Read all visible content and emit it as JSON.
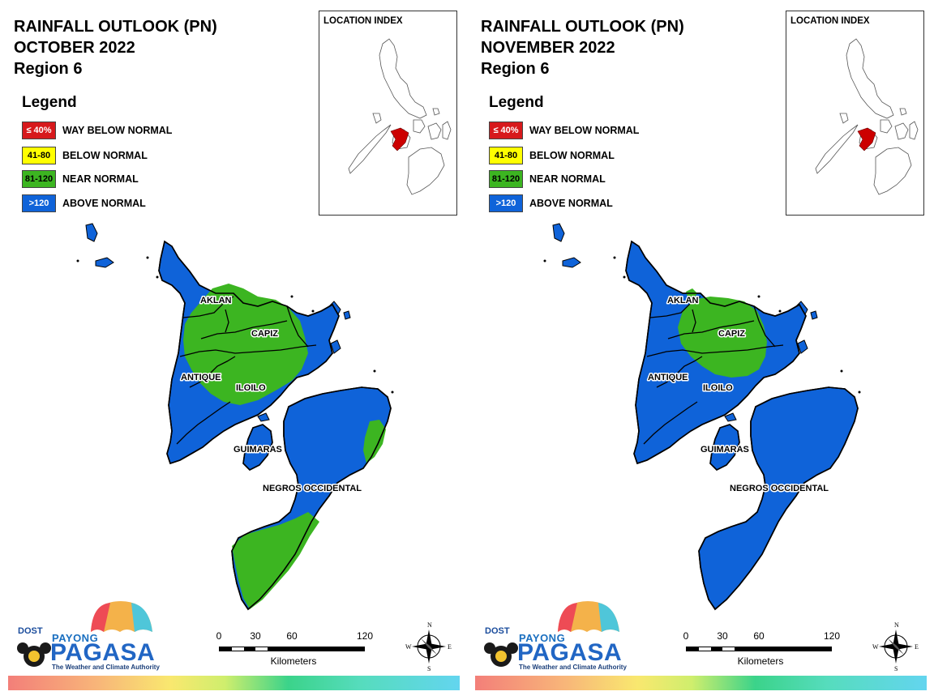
{
  "legend": {
    "title": "Legend",
    "items": [
      {
        "range": "≤ 40%",
        "label": "WAY BELOW NORMAL",
        "color": "#d7191c",
        "text_color": "#ffffff"
      },
      {
        "range": "41-80",
        "label": "BELOW NORMAL",
        "color": "#ffff00",
        "text_color": "#000000"
      },
      {
        "range": "81-120",
        "label": "NEAR NORMAL",
        "color": "#3cb521",
        "text_color": "#000000"
      },
      {
        "range": ">120",
        "label": "ABOVE NORMAL",
        "color": "#0f63d9",
        "text_color": "#ffffff"
      }
    ]
  },
  "location_index": {
    "title": "LOCATION INDEX",
    "highlight_color": "#cc0000"
  },
  "scale": {
    "ticks": [
      0,
      30,
      60,
      120
    ],
    "unit": "Kilometers"
  },
  "compass": {
    "n": "N",
    "s": "S",
    "e": "E",
    "w": "W"
  },
  "logo": {
    "agency": "DOST",
    "line1": "PAYONG",
    "line2": "PAGASA",
    "tagline": "The Weather and Climate Authority"
  },
  "region_names": [
    "AKLAN",
    "CAPIZ",
    "ANTIQUE",
    "ILOILO",
    "GUIMARAS",
    "NEGROS OCCIDENTAL"
  ],
  "colors": {
    "near_normal": "#3cb521",
    "above_normal": "#0f63d9"
  },
  "panels": [
    {
      "title_line1": "RAINFALL OUTLOOK (PN)",
      "title_line2": "OCTOBER 2022",
      "title_line3": "Region 6",
      "near_normal_areas": [
        "AKLAN",
        "CAPIZ",
        "ILOILO",
        "ANTIQUE (north-east)",
        "NEGROS OCCIDENTAL (south, east coast)"
      ],
      "above_normal_areas": [
        "ANTIQUE",
        "ILOILO (south)",
        "GUIMARAS",
        "NEGROS OCCIDENTAL (north)"
      ]
    },
    {
      "title_line1": "RAINFALL OUTLOOK (PN)",
      "title_line2": "NOVEMBER 2022",
      "title_line3": "Region 6",
      "near_normal_areas": [
        "CAPIZ",
        "ILOILO (north)",
        "AKLAN (east)"
      ],
      "above_normal_areas": [
        "AKLAN",
        "ANTIQUE",
        "ILOILO",
        "GUIMARAS",
        "NEGROS OCCIDENTAL"
      ]
    }
  ]
}
